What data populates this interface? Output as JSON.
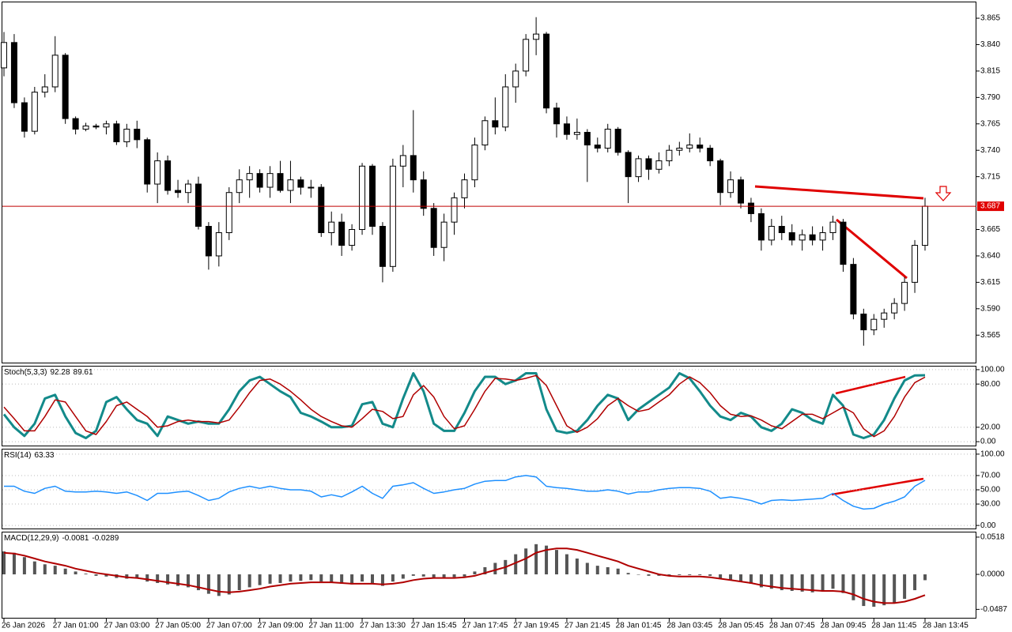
{
  "chart_data": [
    {
      "type": "candlestick",
      "categories": [
        "26 Jan 2026",
        null,
        null,
        null,
        null,
        "27 Jan 01:00",
        null,
        null,
        null,
        null,
        "27 Jan 03:00",
        null,
        null,
        null,
        null,
        "27 Jan 05:00",
        null,
        null,
        null,
        null,
        "27 Jan 07:00",
        null,
        null,
        null,
        null,
        "27 Jan 09:00",
        null,
        null,
        null,
        null,
        "27 Jan 11:00",
        null,
        null,
        null,
        null,
        "27 Jan 13:30",
        null,
        null,
        null,
        null,
        "27 Jan 15:45",
        null,
        null,
        null,
        null,
        "27 Jan 17:45",
        null,
        null,
        null,
        null,
        "27 Jan 19:45",
        null,
        null,
        null,
        null,
        "27 Jan 21:45",
        null,
        null,
        null,
        null,
        "28 Jan 01:45",
        null,
        null,
        null,
        null,
        "28 Jan 03:45",
        null,
        null,
        null,
        null,
        "28 Jan 05:45",
        null,
        null,
        null,
        null,
        "28 Jan 07:45",
        null,
        null,
        null,
        null,
        "28 Jan 09:45",
        null,
        null,
        null,
        null,
        "28 Jan 11:45",
        null,
        null,
        null,
        null,
        "28 Jan 13:45"
      ],
      "open": [
        3.818,
        3.842,
        3.785,
        3.758,
        3.795,
        3.8,
        3.83,
        3.77,
        3.76,
        3.763,
        3.762,
        3.765,
        3.748,
        3.76,
        3.75,
        3.708,
        3.73,
        3.702,
        3.7,
        3.708,
        3.668,
        3.64,
        3.662,
        3.7,
        3.712,
        3.718,
        3.705,
        3.718,
        3.702,
        3.712,
        3.705,
        3.705,
        3.662,
        3.672,
        3.65,
        3.665,
        3.725,
        3.668,
        3.63,
        3.725,
        3.735,
        3.712,
        3.685,
        3.648,
        3.672,
        3.695,
        3.712,
        3.745,
        3.768,
        3.762,
        3.8,
        3.815,
        3.845,
        3.85,
        3.78,
        3.765,
        3.755,
        3.757,
        3.745,
        3.742,
        3.76,
        3.738,
        3.715,
        3.732,
        3.722,
        3.73,
        3.74,
        3.742,
        3.745,
        3.742,
        3.73,
        3.7,
        3.712,
        3.69,
        3.68,
        3.655,
        3.668,
        3.662,
        3.655,
        3.66,
        3.655,
        3.662,
        3.672,
        3.632,
        3.585,
        3.57,
        3.58,
        3.586,
        3.595,
        3.615,
        3.65
      ],
      "high": [
        3.852,
        3.85,
        3.79,
        3.8,
        3.812,
        3.848,
        3.832,
        3.772,
        3.766,
        3.765,
        3.768,
        3.768,
        3.765,
        3.768,
        3.752,
        3.738,
        3.735,
        3.712,
        3.712,
        3.715,
        3.672,
        3.672,
        3.705,
        3.722,
        3.725,
        3.722,
        3.725,
        3.73,
        3.73,
        3.715,
        3.712,
        3.708,
        3.682,
        3.68,
        3.67,
        3.728,
        3.727,
        3.672,
        3.732,
        3.745,
        3.778,
        3.72,
        3.69,
        3.68,
        3.7,
        3.718,
        3.752,
        3.772,
        3.79,
        3.812,
        3.822,
        3.85,
        3.866,
        3.852,
        3.785,
        3.772,
        3.77,
        3.76,
        3.752,
        3.765,
        3.762,
        3.74,
        3.735,
        3.735,
        3.738,
        3.745,
        3.748,
        3.756,
        3.752,
        3.745,
        3.732,
        3.72,
        3.715,
        3.695,
        3.685,
        3.675,
        3.678,
        3.67,
        3.665,
        3.668,
        3.668,
        3.678,
        3.675,
        3.638,
        3.59,
        3.585,
        3.59,
        3.6,
        3.62,
        3.655,
        3.695
      ],
      "low": [
        3.81,
        3.78,
        3.752,
        3.755,
        3.79,
        3.795,
        3.765,
        3.755,
        3.758,
        3.76,
        3.755,
        3.745,
        3.743,
        3.742,
        3.7,
        3.69,
        3.698,
        3.695,
        3.69,
        3.665,
        3.627,
        3.63,
        3.655,
        3.69,
        3.695,
        3.7,
        3.695,
        3.7,
        3.69,
        3.698,
        3.695,
        3.658,
        3.65,
        3.64,
        3.645,
        3.66,
        3.66,
        3.615,
        3.625,
        3.705,
        3.7,
        3.678,
        3.64,
        3.635,
        3.66,
        3.685,
        3.705,
        3.74,
        3.755,
        3.758,
        3.785,
        3.81,
        3.83,
        3.775,
        3.752,
        3.75,
        3.75,
        3.71,
        3.738,
        3.738,
        3.735,
        3.69,
        3.71,
        3.712,
        3.718,
        3.725,
        3.735,
        3.738,
        3.738,
        3.725,
        3.688,
        3.695,
        3.685,
        3.672,
        3.645,
        3.65,
        3.655,
        3.65,
        3.645,
        3.65,
        3.645,
        3.655,
        3.625,
        3.58,
        3.555,
        3.565,
        3.572,
        3.58,
        3.588,
        3.605,
        3.645
      ],
      "close": [
        3.842,
        3.785,
        3.758,
        3.795,
        3.8,
        3.83,
        3.77,
        3.76,
        3.763,
        3.762,
        3.765,
        3.748,
        3.76,
        3.75,
        3.708,
        3.73,
        3.702,
        3.7,
        3.708,
        3.668,
        3.64,
        3.662,
        3.7,
        3.712,
        3.718,
        3.705,
        3.718,
        3.702,
        3.712,
        3.705,
        3.705,
        3.662,
        3.672,
        3.65,
        3.665,
        3.725,
        3.668,
        3.63,
        3.725,
        3.735,
        3.712,
        3.685,
        3.648,
        3.672,
        3.695,
        3.712,
        3.745,
        3.768,
        3.762,
        3.8,
        3.815,
        3.845,
        3.85,
        3.78,
        3.765,
        3.755,
        3.757,
        3.745,
        3.742,
        3.76,
        3.738,
        3.715,
        3.732,
        3.722,
        3.73,
        3.74,
        3.742,
        3.745,
        3.742,
        3.73,
        3.7,
        3.712,
        3.69,
        3.68,
        3.655,
        3.668,
        3.662,
        3.655,
        3.66,
        3.655,
        3.662,
        3.672,
        3.632,
        3.585,
        3.57,
        3.58,
        3.586,
        3.595,
        3.615,
        3.65,
        3.687
      ],
      "current_price": 3.687,
      "ylim": [
        3.539,
        3.88
      ],
      "yticks": [
        3.565,
        {
          "value": 3.59,
          "label": "3.590"
        },
        3.615,
        {
          "value": 3.64,
          "label": "3.640"
        },
        3.665,
        3.715,
        {
          "value": 3.74,
          "label": "3.740"
        },
        3.765,
        {
          "value": 3.79,
          "label": "3.790"
        },
        3.815,
        {
          "value": 3.84,
          "label": "3.840"
        },
        3.865
      ],
      "grid": false
    },
    {
      "type": "line",
      "label": "Stoch(5,3,3)",
      "series": [
        {
          "color": "#138a8a",
          "values": [
            38,
            20,
            8,
            25,
            60,
            65,
            35,
            12,
            5,
            15,
            55,
            62,
            45,
            30,
            25,
            8,
            35,
            30,
            25,
            28,
            25,
            25,
            45,
            70,
            85,
            90,
            80,
            70,
            62,
            40,
            35,
            28,
            20,
            20,
            22,
            52,
            55,
            25,
            20,
            60,
            95,
            70,
            25,
            15,
            15,
            40,
            70,
            90,
            90,
            80,
            85,
            95,
            95,
            45,
            15,
            12,
            15,
            30,
            50,
            65,
            60,
            30,
            45,
            55,
            65,
            75,
            95,
            88,
            70,
            50,
            35,
            30,
            40,
            35,
            20,
            15,
            25,
            45,
            40,
            30,
            25,
            65,
            50,
            10,
            5,
            10,
            30,
            60,
            85,
            92,
            92.28
          ]
        },
        {
          "color": "#b00000",
          "values": [
            48,
            32,
            15,
            15,
            35,
            58,
            55,
            35,
            15,
            10,
            28,
            50,
            55,
            45,
            35,
            20,
            22,
            28,
            30,
            28,
            28,
            26,
            30,
            48,
            68,
            85,
            87,
            80,
            70,
            58,
            45,
            35,
            28,
            22,
            20,
            32,
            45,
            42,
            32,
            35,
            65,
            78,
            62,
            35,
            18,
            22,
            45,
            70,
            88,
            87,
            85,
            88,
            92,
            78,
            50,
            22,
            13,
            20,
            32,
            50,
            60,
            50,
            42,
            45,
            55,
            65,
            80,
            90,
            82,
            68,
            50,
            38,
            35,
            36,
            30,
            22,
            18,
            28,
            38,
            38,
            32,
            40,
            48,
            40,
            18,
            7,
            15,
            35,
            62,
            82,
            89.61
          ]
        }
      ],
      "ylim": [
        -5.4,
        104.3
      ],
      "yticks": [
        {
          "value": 0,
          "label": "0.00"
        },
        {
          "value": 20,
          "label": "20.00"
        },
        {
          "value": 80,
          "label": "80.00"
        },
        {
          "value": 100,
          "label": "100.00"
        }
      ],
      "grid": true
    },
    {
      "type": "line",
      "label": "RSI(14)",
      "series": [
        {
          "color": "#1e90ff",
          "values": [
            55,
            55,
            48,
            45,
            52,
            55,
            48,
            47,
            47,
            48,
            47,
            45,
            47,
            42,
            35,
            45,
            45,
            47,
            48,
            42,
            35,
            38,
            47,
            52,
            55,
            52,
            55,
            52,
            50,
            50,
            48,
            40,
            43,
            40,
            47,
            55,
            45,
            38,
            55,
            57,
            60,
            52,
            45,
            47,
            50,
            52,
            58,
            62,
            63,
            63,
            68,
            70,
            68,
            55,
            53,
            52,
            50,
            48,
            48,
            50,
            48,
            44,
            47,
            47,
            50,
            52,
            53,
            53,
            52,
            48,
            38,
            40,
            38,
            35,
            30,
            35,
            36,
            35,
            36,
            37,
            38,
            45,
            35,
            27,
            23,
            24,
            30,
            34,
            40,
            55,
            63.33
          ]
        }
      ],
      "ylim": [
        -4.3,
        106.5
      ],
      "yticks": [
        {
          "value": 0,
          "label": "0.00"
        },
        {
          "value": 30,
          "label": "30.00"
        },
        {
          "value": 50,
          "label": "50.00"
        },
        {
          "value": 70,
          "label": "70.00"
        },
        {
          "value": 100,
          "label": "100.00"
        }
      ],
      "grid": true
    },
    {
      "type": "macd",
      "label": "MACD(12,29,9)",
      "series": [
        {
          "color": "#555555",
          "style": "histogram",
          "values": [
            0.032,
            0.03,
            0.024,
            0.018,
            0.014,
            0.012,
            0.008,
            0.004,
            0.001,
            -0.002,
            -0.003,
            -0.005,
            -0.006,
            -0.006,
            -0.01,
            -0.012,
            -0.014,
            -0.016,
            -0.018,
            -0.022,
            -0.027,
            -0.03,
            -0.028,
            -0.022,
            -0.018,
            -0.015,
            -0.013,
            -0.012,
            -0.01,
            -0.009,
            -0.008,
            -0.01,
            -0.011,
            -0.013,
            -0.014,
            -0.01,
            -0.012,
            -0.016,
            -0.01,
            -0.006,
            -0.002,
            -0.003,
            -0.006,
            -0.005,
            -0.004,
            -0.003,
            0.004,
            0.01,
            0.016,
            0.02,
            0.028,
            0.036,
            0.042,
            0.04,
            0.034,
            0.028,
            0.022,
            0.016,
            0.012,
            0.01,
            0.008,
            0.002,
            0.0,
            -0.002,
            -0.002,
            -0.002,
            -0.001,
            -0.001,
            -0.001,
            -0.002,
            -0.006,
            -0.008,
            -0.01,
            -0.013,
            -0.018,
            -0.02,
            -0.022,
            -0.023,
            -0.024,
            -0.025,
            -0.024,
            -0.02,
            -0.026,
            -0.036,
            -0.044,
            -0.045,
            -0.043,
            -0.04,
            -0.034,
            -0.022,
            -0.0081
          ]
        },
        {
          "color": "#b00000",
          "style": "line",
          "values": [
            0.03,
            0.029,
            0.026,
            0.022,
            0.018,
            0.015,
            0.012,
            0.008,
            0.005,
            0.002,
            0.0,
            -0.002,
            -0.004,
            -0.005,
            -0.007,
            -0.009,
            -0.011,
            -0.013,
            -0.015,
            -0.018,
            -0.021,
            -0.024,
            -0.025,
            -0.024,
            -0.022,
            -0.02,
            -0.017,
            -0.015,
            -0.013,
            -0.012,
            -0.011,
            -0.011,
            -0.011,
            -0.012,
            -0.013,
            -0.013,
            -0.013,
            -0.014,
            -0.013,
            -0.011,
            -0.008,
            -0.006,
            -0.005,
            -0.005,
            -0.005,
            -0.004,
            -0.002,
            0.002,
            0.006,
            0.01,
            0.016,
            0.022,
            0.03,
            0.034,
            0.036,
            0.036,
            0.034,
            0.03,
            0.026,
            0.022,
            0.018,
            0.012,
            0.008,
            0.004,
            0.0,
            -0.002,
            -0.003,
            -0.003,
            -0.003,
            -0.004,
            -0.006,
            -0.008,
            -0.01,
            -0.012,
            -0.015,
            -0.017,
            -0.019,
            -0.02,
            -0.021,
            -0.022,
            -0.023,
            -0.023,
            -0.024,
            -0.028,
            -0.034,
            -0.038,
            -0.04,
            -0.04,
            -0.038,
            -0.034,
            -0.0289
          ]
        }
      ],
      "ylim": [
        -0.0604,
        0.0583
      ],
      "yticks": [
        -0.0487,
        {
          "value": 0,
          "label": "0.0000"
        },
        0.0518
      ],
      "grid": false
    }
  ]
}
